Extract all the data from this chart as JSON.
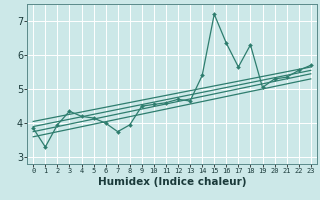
{
  "xlabel": "Humidex (Indice chaleur)",
  "xlim": [
    -0.5,
    23.5
  ],
  "ylim": [
    2.8,
    7.5
  ],
  "xticks": [
    0,
    1,
    2,
    3,
    4,
    5,
    6,
    7,
    8,
    9,
    10,
    11,
    12,
    13,
    14,
    15,
    16,
    17,
    18,
    19,
    20,
    21,
    22,
    23
  ],
  "yticks": [
    3,
    4,
    5,
    6,
    7
  ],
  "bg_color": "#cce8e8",
  "grid_color": "#ffffff",
  "line_color": "#2e7d6e",
  "data_x": [
    0,
    1,
    2,
    3,
    4,
    5,
    6,
    7,
    8,
    9,
    10,
    11,
    12,
    13,
    14,
    15,
    16,
    17,
    18,
    19,
    20,
    21,
    22,
    23
  ],
  "data_y": [
    3.85,
    3.3,
    3.95,
    4.35,
    4.2,
    4.15,
    4.0,
    3.75,
    3.95,
    4.5,
    4.55,
    4.6,
    4.7,
    4.65,
    5.4,
    7.2,
    6.35,
    5.65,
    6.3,
    5.05,
    5.3,
    5.35,
    5.55,
    5.7
  ],
  "trend_lines": [
    {
      "x": [
        0,
        23
      ],
      "y": [
        3.6,
        5.3
      ]
    },
    {
      "x": [
        0,
        23
      ],
      "y": [
        3.75,
        5.45
      ]
    },
    {
      "x": [
        0,
        23
      ],
      "y": [
        3.9,
        5.55
      ]
    },
    {
      "x": [
        0,
        23
      ],
      "y": [
        4.05,
        5.65
      ]
    }
  ]
}
